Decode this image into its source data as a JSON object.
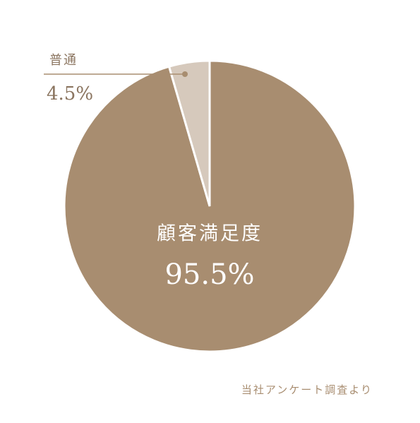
{
  "chart_data": {
    "type": "pie",
    "categories": [
      "顧客満足度",
      "普通"
    ],
    "values": [
      95.5,
      4.5
    ],
    "value_labels": [
      "95.5%",
      "4.5%"
    ],
    "colors": [
      "#a88d70",
      "#d6c9bc"
    ],
    "source": "当社アンケート調査より"
  }
}
